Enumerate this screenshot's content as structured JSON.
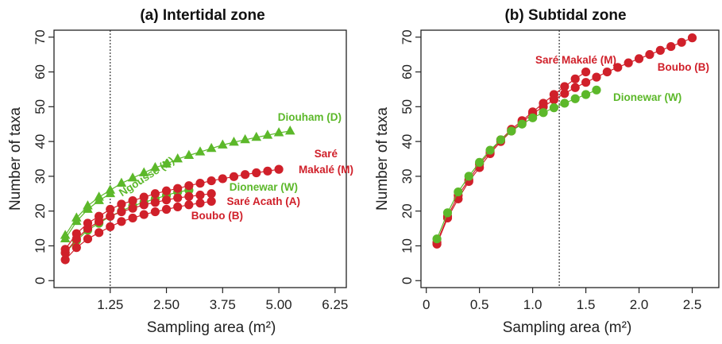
{
  "chart_data": [
    {
      "type": "scatter",
      "panel": "a",
      "title": "(a) Intertidal zone",
      "xlabel": "Sampling area (m²)",
      "ylabel": "Number of taxa",
      "xlim": [
        0,
        6.5
      ],
      "ylim": [
        -2,
        72
      ],
      "xticks": [
        "1.25",
        "2.50",
        "3.75",
        "5.00",
        "6.25"
      ],
      "xtick_values": [
        1.25,
        2.5,
        3.75,
        5.0,
        6.25
      ],
      "yticks": [
        0,
        10,
        20,
        30,
        40,
        50,
        60,
        70
      ],
      "vline": 1.25,
      "grid": false,
      "colors": {
        "red": "#d0202a",
        "green": "#5cb82a"
      },
      "series": [
        {
          "name": "Diouham (D)",
          "color": "#5cb82a",
          "marker": "triangle",
          "x": [
            0.25,
            0.5,
            0.75,
            1.0,
            1.25,
            1.5,
            1.75,
            2.0,
            2.25,
            2.5,
            2.75,
            3.0,
            3.25,
            3.5,
            3.75,
            4.0,
            4.25,
            4.5,
            4.75,
            5.0,
            5.25
          ],
          "y": [
            13.0,
            18.0,
            21.5,
            24.0,
            26.0,
            28.0,
            29.5,
            31.0,
            32.5,
            33.5,
            35.0,
            36.0,
            37.0,
            38.0,
            39.0,
            39.8,
            40.5,
            41.2,
            41.8,
            42.5,
            43.0
          ]
        },
        {
          "name": "Ngoussé (N)",
          "color": "#5cb82a",
          "marker": "triangle",
          "x": [
            0.25,
            0.5,
            0.75,
            1.0,
            1.25
          ],
          "y": [
            12.0,
            17.0,
            20.5,
            23.0,
            25.0
          ]
        },
        {
          "name": "Dionewar (W)",
          "color": "#5cb82a",
          "marker": "circle",
          "x": [
            0.25,
            0.5,
            0.75,
            1.0,
            1.25,
            1.5,
            1.75,
            2.0,
            2.25,
            2.5,
            2.75,
            3.0
          ],
          "y": [
            8.0,
            11.5,
            14.5,
            16.5,
            18.5,
            20.0,
            21.5,
            22.5,
            23.5,
            24.5,
            25.5,
            26.0
          ]
        },
        {
          "name": "Saré Makalé (M)",
          "color": "#d0202a",
          "marker": "circle",
          "x": [
            0.25,
            0.5,
            0.75,
            1.0,
            1.25,
            1.5,
            1.75,
            2.0,
            2.25,
            2.5,
            2.75,
            3.0,
            3.25,
            3.5,
            3.75,
            4.0,
            4.25,
            4.5,
            4.75,
            5.0
          ],
          "y": [
            9.0,
            13.5,
            16.5,
            18.5,
            20.5,
            22.0,
            23.0,
            24.0,
            25.0,
            25.8,
            26.5,
            27.3,
            28.0,
            28.7,
            29.3,
            29.9,
            30.5,
            31.0,
            31.5,
            32.0
          ]
        },
        {
          "name": "Saré Acath (A)",
          "color": "#d0202a",
          "marker": "circle",
          "x": [
            0.25,
            0.5,
            0.75,
            1.0,
            1.25,
            1.5,
            1.75,
            2.0,
            2.25,
            2.5,
            2.75,
            3.0,
            3.25,
            3.5
          ],
          "y": [
            8.0,
            12.0,
            15.0,
            17.0,
            18.5,
            19.8,
            20.8,
            21.8,
            22.5,
            23.2,
            23.8,
            24.2,
            24.6,
            25.0
          ]
        },
        {
          "name": "Boubo (B)",
          "color": "#d0202a",
          "marker": "circle",
          "x": [
            0.25,
            0.5,
            0.75,
            1.0,
            1.25,
            1.5,
            1.75,
            2.0,
            2.25,
            2.5,
            2.75,
            3.0,
            3.25,
            3.5
          ],
          "y": [
            6.0,
            9.5,
            12.0,
            13.8,
            15.5,
            17.0,
            18.0,
            19.0,
            19.8,
            20.5,
            21.2,
            21.8,
            22.3,
            22.8
          ]
        }
      ],
      "annotations": [
        {
          "text": "Diouham (D)",
          "color": "#5cb82a"
        },
        {
          "text": "Ngoussé (N)",
          "color": "#5cb82a"
        },
        {
          "text": "Dionewar (W)",
          "color": "#5cb82a"
        },
        {
          "text": "Saré",
          "color": "#d0202a"
        },
        {
          "text": "Makalé (M)",
          "color": "#d0202a"
        },
        {
          "text": "Saré Acath (A)",
          "color": "#d0202a"
        },
        {
          "text": "Boubo (B)",
          "color": "#d0202a"
        }
      ]
    },
    {
      "type": "scatter",
      "panel": "b",
      "title": "(b) Subtidal zone",
      "xlabel": "Sampling area (m²)",
      "ylabel": "Number of taxa",
      "xlim": [
        -0.05,
        2.75
      ],
      "ylim": [
        -2,
        72
      ],
      "xticks": [
        "0",
        "0.5",
        "1.0",
        "1.5",
        "2.0",
        "2.5"
      ],
      "xtick_values": [
        0,
        0.5,
        1.0,
        1.5,
        2.0,
        2.5
      ],
      "yticks": [
        0,
        10,
        20,
        30,
        40,
        50,
        60,
        70
      ],
      "vline": 1.25,
      "grid": false,
      "series": [
        {
          "name": "Boubo (B)",
          "color": "#d0202a",
          "marker": "circle",
          "x": [
            0.1,
            0.2,
            0.3,
            0.4,
            0.5,
            0.6,
            0.7,
            0.8,
            0.9,
            1.0,
            1.1,
            1.2,
            1.3,
            1.4,
            1.5,
            1.6,
            1.7,
            1.8,
            1.9,
            2.0,
            2.1,
            2.2,
            2.3,
            2.4,
            2.5
          ],
          "y": [
            10.5,
            18.0,
            23.5,
            28.5,
            32.5,
            36.5,
            40.0,
            43.0,
            45.5,
            48.0,
            50.0,
            52.0,
            53.8,
            55.5,
            57.0,
            58.5,
            60.0,
            61.3,
            62.6,
            63.8,
            65.0,
            66.2,
            67.3,
            68.5,
            69.8
          ]
        },
        {
          "name": "Saré Makalé (M)",
          "color": "#d0202a",
          "marker": "circle",
          "x": [
            0.1,
            0.2,
            0.3,
            0.4,
            0.5,
            0.6,
            0.7,
            0.8,
            0.9,
            1.0,
            1.1,
            1.2,
            1.3,
            1.4,
            1.5
          ],
          "y": [
            11.0,
            18.5,
            24.5,
            29.0,
            33.5,
            37.0,
            40.5,
            43.5,
            46.0,
            48.5,
            51.0,
            53.5,
            55.8,
            58.0,
            60.0
          ]
        },
        {
          "name": "Dionewar (W)",
          "color": "#5cb82a",
          "marker": "circle",
          "x": [
            0.1,
            0.2,
            0.3,
            0.4,
            0.5,
            0.6,
            0.7,
            0.8,
            0.9,
            1.0,
            1.1,
            1.2,
            1.3,
            1.4,
            1.5,
            1.6
          ],
          "y": [
            12.0,
            19.5,
            25.5,
            30.0,
            34.0,
            37.5,
            40.5,
            43.0,
            45.0,
            46.8,
            48.3,
            49.7,
            51.0,
            52.3,
            53.5,
            54.8
          ]
        }
      ],
      "annotations": [
        {
          "text": "Saré Makalé (M)",
          "color": "#d0202a"
        },
        {
          "text": "Boubo (B)",
          "color": "#d0202a"
        },
        {
          "text": "Dionewar (W)",
          "color": "#5cb82a"
        }
      ]
    }
  ]
}
